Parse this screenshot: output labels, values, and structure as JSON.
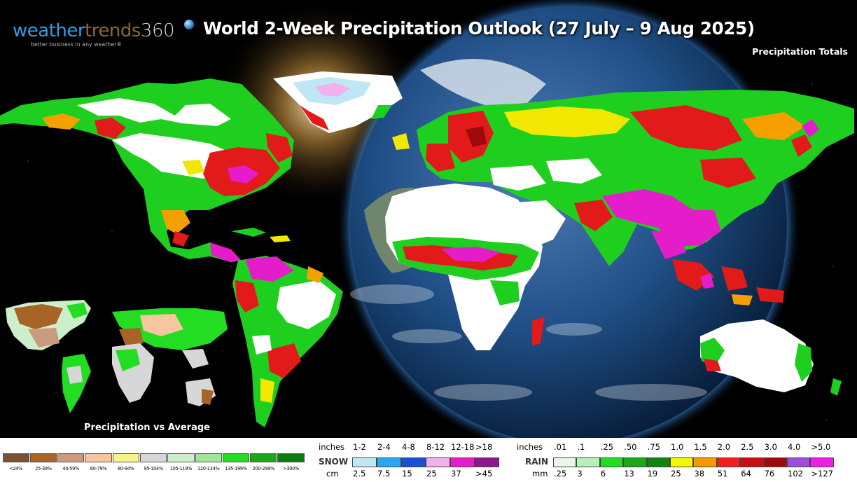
{
  "header": {
    "logo": {
      "part_weather": "weather",
      "part_trends": "trends",
      "part_360": "360",
      "tagline": "better business in any weather®"
    },
    "title": "World 2-Week Precipitation Outlook (27 July – 9 Aug 2025)",
    "subtitle": "Precipitation Totals"
  },
  "inset": {
    "label": "Precipitation vs Average"
  },
  "pct_legend": [
    {
      "label": "<24%",
      "color": "#7a5232"
    },
    {
      "label": "25-39%",
      "color": "#a86426"
    },
    {
      "label": "40-59%",
      "color": "#c99a7e"
    },
    {
      "label": "60-79%",
      "color": "#f6c6a0"
    },
    {
      "label": "80-94%",
      "color": "#f8f28a"
    },
    {
      "label": "95-104%",
      "color": "#d7d7d7"
    },
    {
      "label": "105-119%",
      "color": "#cdeeca"
    },
    {
      "label": "120-134%",
      "color": "#a4e39c"
    },
    {
      "label": "135-199%",
      "color": "#22dd22"
    },
    {
      "label": "200-299%",
      "color": "#1aa81a"
    },
    {
      "label": ">300%",
      "color": "#0f7a0f"
    }
  ],
  "snow_legend": {
    "inches_label": "inches",
    "name": "SNOW",
    "cm_label": "cm",
    "inch_ticks": [
      "1-2",
      "2-4",
      "4-8",
      "8-12",
      "12-18",
      ">18"
    ],
    "colors": [
      "#bfe6f5",
      "#2aa7ee",
      "#1a4fd8",
      "#f2b0ec",
      "#e51cc9",
      "#8c1a8a"
    ],
    "cm_ticks": [
      "2.5",
      "7.5",
      "15",
      "25",
      "37",
      ">45"
    ]
  },
  "rain_legend": {
    "inches_label": "inches",
    "name": "RAIN",
    "mm_label": "mm",
    "inch_ticks": [
      ".01",
      ".1",
      ".25",
      ".50",
      ".75",
      "1.0",
      "1.5",
      "2.0",
      "2.5",
      "3.0",
      "4.0",
      ">5.0"
    ],
    "colors": [
      "#e6f7e6",
      "#b8eeb8",
      "#22dd22",
      "#1aa81a",
      "#128212",
      "#f5f500",
      "#f59a00",
      "#f01e1e",
      "#c80e0e",
      "#9e0a0a",
      "#9b4fd8",
      "#f21ee6"
    ],
    "mm_ticks": [
      ".25",
      "3",
      "6",
      "13",
      "19",
      "25",
      "38",
      "51",
      "64",
      "76",
      "102",
      ">127"
    ]
  },
  "map_colors": {
    "heavy": "#e51cc9",
    "red": "#e31a1a",
    "orange": "#f5a000",
    "yellow": "#f0e800",
    "green": "#1fcf1f",
    "light_green": "#bdf0bd",
    "dry": "#ffffff",
    "ocean_globe": "#1b3f6e",
    "space": "#000000"
  }
}
